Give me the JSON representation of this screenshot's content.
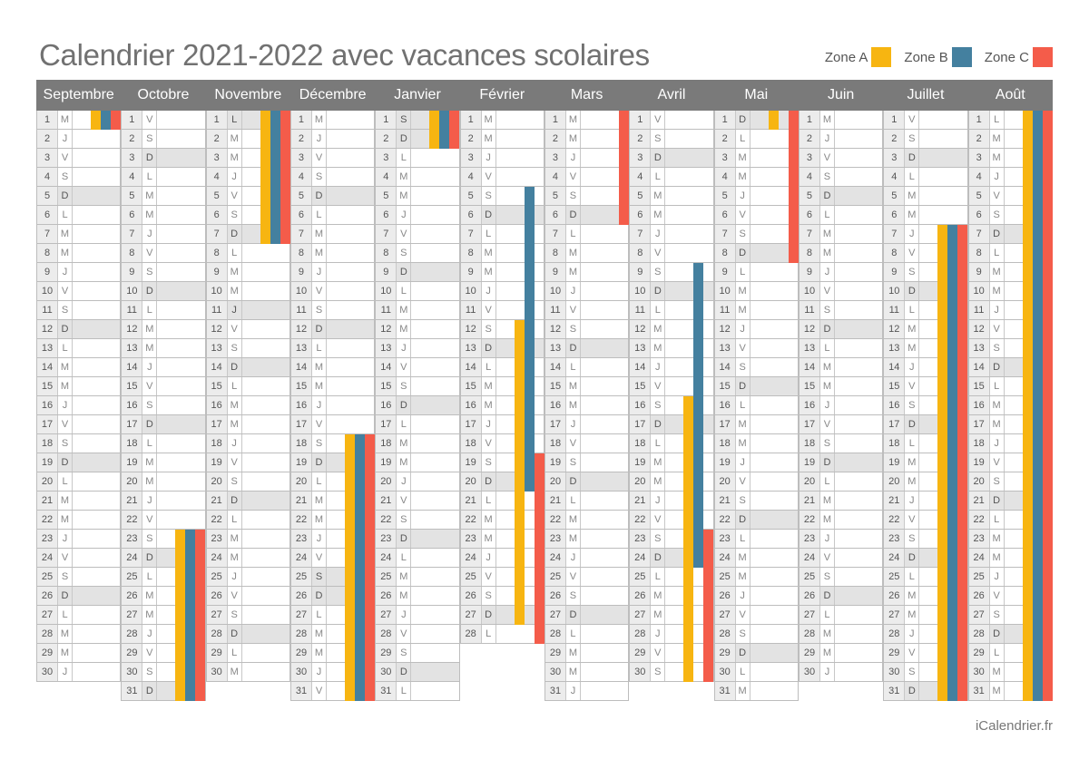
{
  "title": "Calendrier 2021-2022 avec vacances scolaires",
  "legend": [
    {
      "label": "Zone A",
      "color": "#F7B511"
    },
    {
      "label": "Zone B",
      "color": "#44809F"
    },
    {
      "label": "Zone C",
      "color": "#F45C4A"
    }
  ],
  "footer": "iCalendrier.fr",
  "colors": {
    "A": "#F7B511",
    "B": "#44809F",
    "C": "#F45C4A"
  },
  "months": [
    {
      "name": "Septembre",
      "days": "MJVSDLMMJVSDLMMJVSDLMMJVSDLMMJ",
      "shaded": []
    },
    {
      "name": "Octobre",
      "days": "VSDLMMJVSDLMMJVSDLMMJVSDLMMJVSD",
      "shaded": []
    },
    {
      "name": "Novembre",
      "days": "LMMJVSDLMMJVSDLMMJVSDLMMJVSDLM",
      "shaded": [
        1,
        11
      ]
    },
    {
      "name": "Décembre",
      "days": "MJVSDLMMJVSDLMMJVSDLMMJVSDLMMJV",
      "shaded": [
        25
      ]
    },
    {
      "name": "Janvier",
      "days": "SDLMMJVSDLMMJVSDLMMJVSDLMMJVSDL",
      "shaded": [
        1
      ]
    },
    {
      "name": "Février",
      "days": "MMJVSDLMMJVSDLMMJVSDLMMJVSDL",
      "shaded": []
    },
    {
      "name": "Mars",
      "days": "MMJVSDLMMJVSDLMMJVSDLMMJVSDLMMJ",
      "shaded": []
    },
    {
      "name": "Avril",
      "days": "VSDLMMJVSDLMMJVSDLMMJVSDLMMJVS",
      "shaded": []
    },
    {
      "name": "Mai",
      "days": "DLMMJVSDLMMJVSDLMMJVSDLMMJVSDLM",
      "shaded": []
    },
    {
      "name": "Juin",
      "days": "MJVSDLMMJVSDLMMJVSDLMMJVSDLMMJ",
      "shaded": []
    },
    {
      "name": "Juillet",
      "days": "VSDLMMJVSDLMMJVSDLMMJVSDLMMJVSD",
      "shaded": []
    },
    {
      "name": "Août",
      "days": "LMMJVSDLMMJVSDLMMJVSDLMMJVSDLMM",
      "shaded": []
    }
  ],
  "vacations": [
    {
      "month": 0,
      "from": 1,
      "to": 1,
      "zones": [
        "A",
        "B",
        "C"
      ]
    },
    {
      "month": 1,
      "from": 23,
      "to": 31,
      "zones": [
        "A",
        "B",
        "C"
      ]
    },
    {
      "month": 2,
      "from": 1,
      "to": 7,
      "zones": [
        "A",
        "B",
        "C"
      ]
    },
    {
      "month": 3,
      "from": 18,
      "to": 31,
      "zones": [
        "A",
        "B",
        "C"
      ]
    },
    {
      "month": 4,
      "from": 1,
      "to": 2,
      "zones": [
        "A",
        "B",
        "C"
      ]
    },
    {
      "month": 5,
      "from": 5,
      "to": 20,
      "zones": [
        "B"
      ]
    },
    {
      "month": 5,
      "from": 12,
      "to": 27,
      "zones": [
        "A"
      ]
    },
    {
      "month": 5,
      "from": 19,
      "to": 28,
      "zones": [
        "C"
      ]
    },
    {
      "month": 6,
      "from": 1,
      "to": 6,
      "zones": [
        "C"
      ]
    },
    {
      "month": 7,
      "from": 9,
      "to": 24,
      "zones": [
        "B"
      ]
    },
    {
      "month": 7,
      "from": 16,
      "to": 30,
      "zones": [
        "A"
      ]
    },
    {
      "month": 7,
      "from": 23,
      "to": 30,
      "zones": [
        "C"
      ]
    },
    {
      "month": 8,
      "from": 1,
      "to": 1,
      "zones": [
        "A"
      ]
    },
    {
      "month": 8,
      "from": 1,
      "to": 8,
      "zones": [
        "C"
      ]
    },
    {
      "month": 10,
      "from": 7,
      "to": 31,
      "zones": [
        "A",
        "B",
        "C"
      ]
    },
    {
      "month": 11,
      "from": 1,
      "to": 31,
      "zones": [
        "A",
        "B",
        "C"
      ]
    }
  ]
}
